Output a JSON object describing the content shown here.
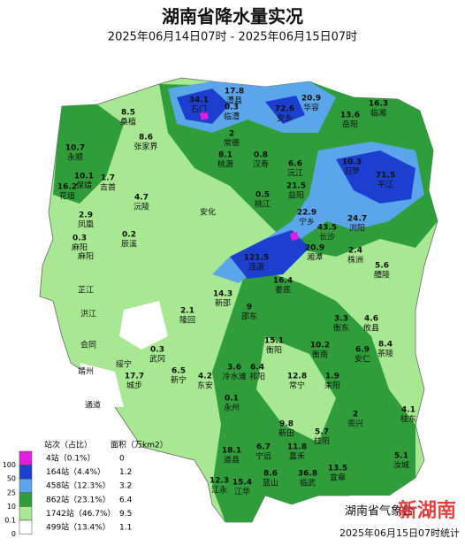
{
  "header": {
    "title": "湖南省降水量实况",
    "subtitle": "2025年06月14日07时 - 2025年06月15日07时"
  },
  "legend": {
    "columns": [
      "站次（占比）",
      "面积（万km2）"
    ],
    "levels": [
      "100",
      "50",
      "25",
      "10",
      "0.1",
      "0"
    ],
    "rows": [
      {
        "stations": "4站（0.1%）",
        "area": "0",
        "color": "#e21de0"
      },
      {
        "stations": "164站（4.4%）",
        "area": "1.2",
        "color": "#1c3fd0"
      },
      {
        "stations": "458站（12.3%）",
        "area": "3.2",
        "color": "#5ba6ea"
      },
      {
        "stations": "862站（23.1%）",
        "area": "6.4",
        "color": "#2f9e3a"
      },
      {
        "stations": "1742站（46.7%）",
        "area": "9.5",
        "color": "#a8e892"
      },
      {
        "stations": "499站（13.4%）",
        "area": "1.1",
        "color": "#ffffff"
      }
    ]
  },
  "stations": [
    {
      "value": "34.1",
      "name": "石门"
    },
    {
      "value": "17.8",
      "name": "澧县"
    },
    {
      "value": "72.6",
      "name": "安乡"
    },
    {
      "value": "20.9",
      "name": "华容"
    },
    {
      "value": "16.3",
      "name": "临湘"
    },
    {
      "value": "13.6",
      "name": "岳阳"
    },
    {
      "value": "8.5",
      "name": "桑植"
    },
    {
      "value": "10.7",
      "name": "永顺"
    },
    {
      "value": "8.6",
      "name": "张家界"
    },
    {
      "value": "0.3",
      "name": "临澧"
    },
    {
      "value": "2",
      "name": "常德"
    },
    {
      "value": "8.1",
      "name": "桃源"
    },
    {
      "value": "0.8",
      "name": "汉寿"
    },
    {
      "value": "6.6",
      "name": "沅江"
    },
    {
      "value": "10.3",
      "name": "汨罗"
    },
    {
      "value": "71.5",
      "name": "平江"
    },
    {
      "value": "10.1",
      "name": "保靖"
    },
    {
      "value": "1.7",
      "name": "吉首"
    },
    {
      "value": "16.2",
      "name": "花垣"
    },
    {
      "value": "4.7",
      "name": "沅陵"
    },
    {
      "value": "0.5",
      "name": "桃江"
    },
    {
      "value": "21.5",
      "name": "益阳"
    },
    {
      "value": "22.9",
      "name": "宁乡"
    },
    {
      "value": "43.5",
      "name": "长沙"
    },
    {
      "value": "24.7",
      "name": "浏阳"
    },
    {
      "value": "2.9",
      "name": "凤凰"
    },
    {
      "value": "0.3",
      "name": "麻阳"
    },
    {
      "value": "0.2",
      "name": "辰溪"
    },
    {
      "value": "121.5",
      "name": "涟源"
    },
    {
      "value": "20.9",
      "name": "湘潭"
    },
    {
      "value": "2.4",
      "name": "株洲"
    },
    {
      "value": "5.6",
      "name": "醴陵"
    },
    {
      "value": "16.4",
      "name": "娄底"
    },
    {
      "value": "14.3",
      "name": "新邵"
    },
    {
      "value": "2.1",
      "name": "隆回"
    },
    {
      "value": "9",
      "name": "邵东"
    },
    {
      "value": "3.3",
      "name": "衡东"
    },
    {
      "value": "4.6",
      "name": "攸县"
    },
    {
      "value": "15.1",
      "name": "衡阳"
    },
    {
      "value": "10.2",
      "name": "衡南"
    },
    {
      "value": "0.3",
      "name": "武冈"
    },
    {
      "value": "6.5",
      "name": "新宁"
    },
    {
      "value": "17.7",
      "name": "城步"
    },
    {
      "value": "4.2",
      "name": "东安"
    },
    {
      "value": "3.6",
      "name": "冷水滩"
    },
    {
      "value": "6.4",
      "name": "祁阳"
    },
    {
      "value": "12.8",
      "name": "常宁"
    },
    {
      "value": "1.9",
      "name": "耒阳"
    },
    {
      "value": "6.9",
      "name": "安仁"
    },
    {
      "value": "8.4",
      "name": "茶陵"
    },
    {
      "value": "0.1",
      "name": "永州"
    },
    {
      "value": "9.8",
      "name": "新田"
    },
    {
      "value": "5.7",
      "name": "桂阳"
    },
    {
      "value": "2",
      "name": "资兴"
    },
    {
      "value": "4.1",
      "name": "桂东"
    },
    {
      "value": "18.1",
      "name": "道县"
    },
    {
      "value": "6.7",
      "name": "宁远"
    },
    {
      "value": "11.8",
      "name": "嘉禾"
    },
    {
      "value": "8.6",
      "name": "蓝山"
    },
    {
      "value": "36.8",
      "name": "临武"
    },
    {
      "value": "13.5",
      "name": "宜章"
    },
    {
      "value": "5.1",
      "name": "汝城"
    },
    {
      "value": "12.3",
      "name": "江永"
    },
    {
      "value": "15.4",
      "name": "江华"
    }
  ],
  "places": [
    "安化",
    "麻阳",
    "芷江",
    "洪江",
    "会同",
    "靖州",
    "绥宁",
    "通道"
  ],
  "footer": {
    "office": "湖南省气象台",
    "time": "2025年06月15日07时统计",
    "watermark": "新湖南"
  }
}
